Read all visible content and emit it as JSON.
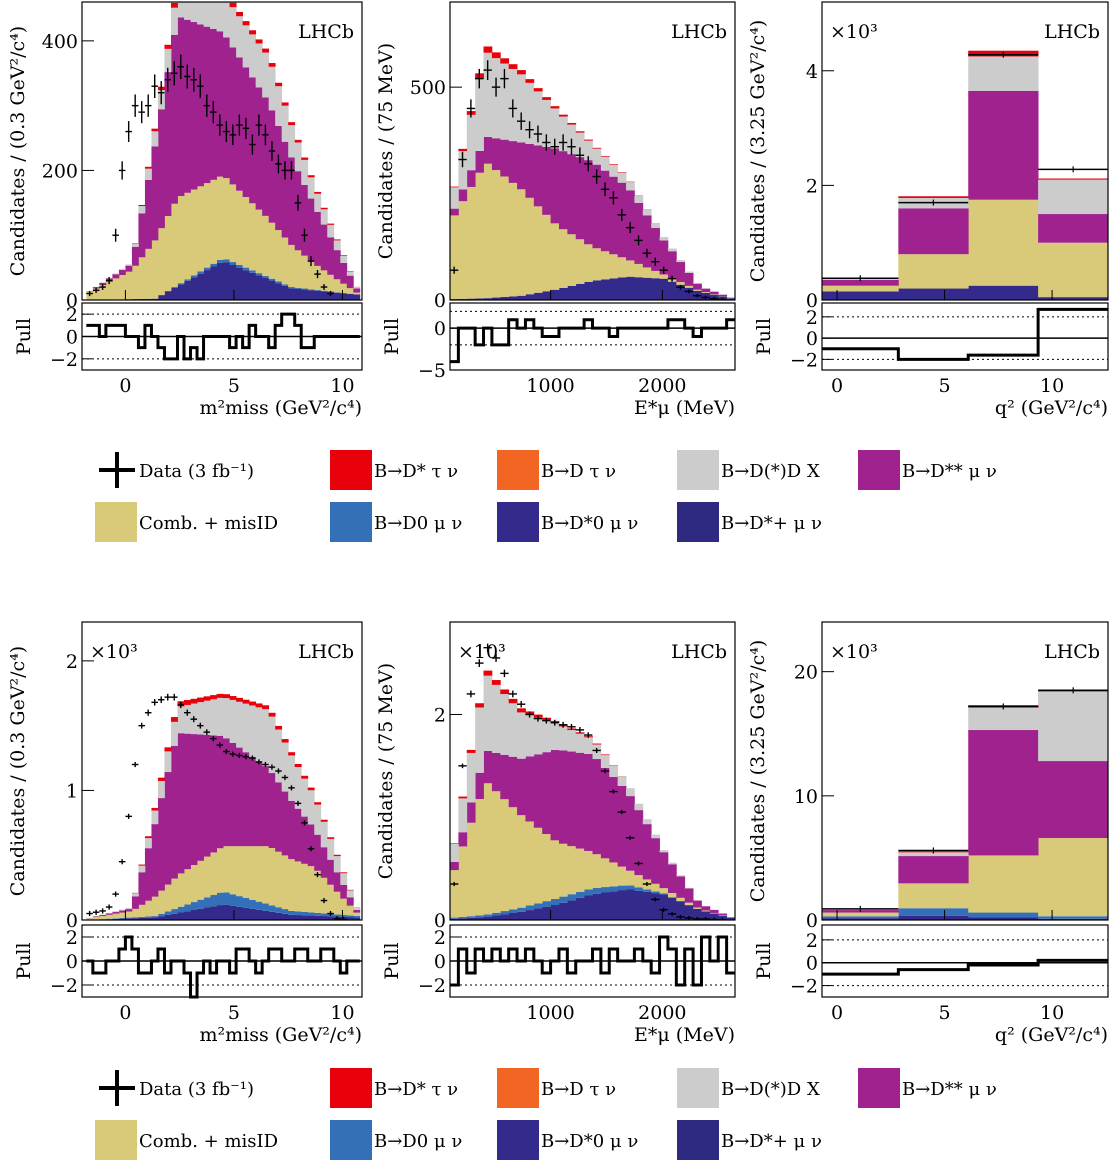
{
  "experiment_label": "LHCb",
  "axis_labels": {
    "mm2_y": "Candidates / (0.3 GeV²/c⁴)",
    "el_y": "Candidates / (75 MeV)",
    "q2_y": "Candidates / (3.25 GeV²/c⁴)",
    "mm2_x": "m²miss (GeV²/c⁴)",
    "el_x": "E*μ (MeV)",
    "q2_x": "q² (GeV²/c⁴)",
    "pull": "Pull",
    "multiplier": "×10³"
  },
  "legend": [
    {
      "key": "data",
      "label": "Data (3 fb⁻¹)"
    },
    {
      "key": "dsttau",
      "label": "B→D* τ ν",
      "color": "#e8000b"
    },
    {
      "key": "dtau",
      "label": "B→D τ ν",
      "color": "#f26522"
    },
    {
      "key": "ddx",
      "label": "B→D(*)D X",
      "color": "#cccccc"
    },
    {
      "key": "dss",
      "label": "B→D** μ ν",
      "color": "#a0228f"
    },
    {
      "key": "comb",
      "label": "Comb. + misID",
      "color": "#d9ca7a"
    },
    {
      "key": "d0",
      "label": "B→D0 μ ν",
      "color": "#3370b8"
    },
    {
      "key": "dst0",
      "label": "B→D*0 μ ν",
      "color": "#342a8c"
    },
    {
      "key": "dstp",
      "label": "B→D*+ μ ν",
      "color": "#2e2a80"
    }
  ],
  "chart_data": [
    {
      "id": "top-mm2",
      "type": "area",
      "variable": "mm2",
      "xlim": [
        -2,
        10.9
      ],
      "ylim": [
        0,
        460
      ],
      "yticks": [
        0,
        200,
        400
      ],
      "xticks": [
        0,
        5,
        10
      ],
      "multiplier": false,
      "bins": {
        "start": -1.8,
        "width": 0.3,
        "n": 42
      },
      "series_profile": {
        "dst0": [
          0,
          2,
          60,
          18,
          8
        ],
        "d0": [
          0,
          0,
          5,
          2,
          0
        ],
        "comb": [
          10,
          45,
          135,
          128,
          90,
          40,
          0
        ],
        "dss": [
          0,
          10,
          280,
          220,
          180,
          90,
          0
        ],
        "ddx": [
          0,
          2,
          45,
          60,
          70,
          30,
          0
        ],
        "tau": [
          0,
          0,
          8,
          7,
          6,
          3,
          0
        ]
      },
      "data": {
        "x": [
          -1.65,
          -1.35,
          -1.05,
          -0.75,
          -0.45,
          -0.15,
          0.15,
          0.45,
          0.75,
          1.05,
          1.35,
          1.65,
          1.95,
          2.25,
          2.55,
          2.85,
          3.15,
          3.45,
          3.75,
          4.05,
          4.35,
          4.65,
          4.95,
          5.25,
          5.55,
          5.85,
          6.15,
          6.45,
          6.75,
          7.05,
          7.35,
          7.65,
          7.95,
          8.25,
          8.55,
          8.85,
          9.15,
          9.45
        ],
        "y": [
          10,
          15,
          20,
          30,
          100,
          200,
          260,
          300,
          290,
          300,
          330,
          320,
          340,
          350,
          360,
          345,
          340,
          330,
          300,
          290,
          270,
          260,
          255,
          270,
          265,
          240,
          270,
          255,
          230,
          210,
          200,
          200,
          150,
          100,
          60,
          40,
          20,
          10
        ]
      },
      "pull": [
        1,
        1,
        0,
        1,
        1,
        1,
        0,
        0,
        -1,
        1,
        0,
        -1,
        -2,
        -2,
        0,
        -2,
        -1,
        -2,
        0,
        0,
        0,
        0,
        -1,
        0,
        -1,
        1,
        0,
        0,
        -1,
        1,
        2,
        2,
        1,
        -1,
        -1,
        0,
        0,
        0,
        0,
        0,
        0,
        0
      ],
      "pull_ylim": [
        -3,
        3
      ],
      "pull_ticks": [
        -2,
        0,
        2
      ]
    },
    {
      "id": "top-el",
      "type": "area",
      "variable": "el",
      "xlim": [
        100,
        2650
      ],
      "ylim": [
        0,
        700
      ],
      "yticks": [
        0,
        500
      ],
      "xticks": [
        1000,
        2000
      ],
      "multiplier": false,
      "bins": {
        "start": 100,
        "width": 75,
        "n": 34
      },
      "series_profile": {
        "dst0": [
          2,
          4,
          10,
          25,
          45,
          55,
          50,
          20,
          2
        ],
        "comb": [
          180,
          320,
          250,
          150,
          80,
          40,
          10,
          2,
          0
        ],
        "dss": [
          10,
          60,
          110,
          180,
          200,
          170,
          80,
          10,
          0
        ],
        "ddx": [
          30,
          200,
          160,
          90,
          40,
          20,
          8,
          1,
          0
        ],
        "tau": [
          0,
          15,
          10,
          5,
          2,
          1,
          0,
          0,
          0
        ]
      },
      "data": {
        "x": [
          137,
          212,
          287,
          362,
          437,
          512,
          587,
          662,
          737,
          812,
          887,
          962,
          1037,
          1112,
          1187,
          1262,
          1337,
          1412,
          1487,
          1562,
          1637,
          1712,
          1787,
          1862,
          1937,
          2012,
          2087,
          2162,
          2237,
          2312,
          2387,
          2462,
          2537
        ],
        "y": [
          70,
          330,
          450,
          520,
          540,
          500,
          520,
          450,
          420,
          400,
          390,
          370,
          360,
          370,
          360,
          340,
          320,
          290,
          260,
          240,
          200,
          170,
          140,
          110,
          90,
          70,
          50,
          30,
          20,
          10,
          6,
          3,
          1
        ]
      },
      "pull": [
        -4,
        0,
        0,
        -2,
        0,
        -2,
        -2,
        1,
        0,
        1,
        0,
        -1,
        -1,
        0,
        0,
        0,
        1,
        0,
        0,
        -1,
        0,
        0,
        0,
        0,
        0,
        0,
        1,
        1,
        0,
        -1,
        0,
        0,
        0,
        1
      ],
      "pull_ylim": [
        -5,
        3
      ],
      "pull_ticks": [
        -5,
        0
      ]
    },
    {
      "id": "top-q2",
      "type": "area",
      "variable": "q2",
      "xlim": [
        -0.7,
        12.6
      ],
      "ylim": [
        0,
        5.2
      ],
      "yticks": [
        0,
        2,
        4
      ],
      "xticks": [
        0,
        5,
        10
      ],
      "multiplier": true,
      "bins": {
        "edges": [
          -0.7,
          2.85,
          6.1,
          9.35,
          12.6
        ]
      },
      "stacks": {
        "dst0": [
          0.15,
          0.2,
          0.25,
          0.05
        ],
        "d0": [
          0,
          0,
          0,
          0
        ],
        "comb": [
          0.1,
          0.6,
          1.5,
          0.95
        ],
        "dss": [
          0.1,
          0.8,
          1.9,
          0.5
        ],
        "ddx": [
          0.02,
          0.18,
          0.6,
          0.6
        ],
        "tau": [
          0.01,
          0.03,
          0.1,
          0.02
        ]
      },
      "data": {
        "x": [
          1.08,
          4.48,
          7.73,
          10.98
        ],
        "y": [
          0.38,
          1.7,
          4.28,
          2.28
        ]
      },
      "pull": [
        -1,
        -2,
        -1.6,
        2.7
      ],
      "pull_ylim": [
        -3,
        3.3
      ],
      "pull_ticks": [
        -2,
        0,
        2
      ]
    },
    {
      "id": "bot-mm2",
      "type": "area",
      "variable": "mm2",
      "xlim": [
        -2,
        10.9
      ],
      "ylim": [
        0,
        2.3
      ],
      "yticks": [
        0,
        1,
        2
      ],
      "xticks": [
        0,
        5,
        10
      ],
      "multiplier": true,
      "bins": {
        "start": -1.8,
        "width": 0.3,
        "n": 42
      },
      "series_profile": {
        "dst0": [
          0,
          0.02,
          0.12,
          0.04,
          0.02
        ],
        "d0": [
          0,
          0.01,
          0.1,
          0.03,
          0.01
        ],
        "comb": [
          0.01,
          0.05,
          0.25,
          0.35,
          0.45,
          0.35,
          0
        ],
        "dss": [
          0,
          0.02,
          1.1,
          0.85,
          0.6,
          0.3,
          0
        ],
        "ddx": [
          0,
          0.01,
          0.2,
          0.3,
          0.45,
          0.25,
          0
        ],
        "tau": [
          0,
          0,
          0.04,
          0.03,
          0.03,
          0.02,
          0
        ]
      },
      "data": {
        "x": [
          -1.65,
          -1.35,
          -1.05,
          -0.75,
          -0.45,
          -0.15,
          0.15,
          0.45,
          0.75,
          1.05,
          1.35,
          1.65,
          1.95,
          2.25,
          2.55,
          2.85,
          3.15,
          3.45,
          3.75,
          4.05,
          4.35,
          4.65,
          4.95,
          5.25,
          5.55,
          5.85,
          6.15,
          6.45,
          6.75,
          7.05,
          7.35,
          7.65,
          7.95,
          8.25,
          8.55,
          8.85,
          9.15,
          9.45,
          9.75,
          10.05
        ],
        "y": [
          0.05,
          0.06,
          0.07,
          0.1,
          0.2,
          0.45,
          0.8,
          1.2,
          1.5,
          1.6,
          1.68,
          1.7,
          1.72,
          1.72,
          1.66,
          1.6,
          1.55,
          1.5,
          1.45,
          1.4,
          1.35,
          1.3,
          1.28,
          1.27,
          1.26,
          1.25,
          1.22,
          1.2,
          1.18,
          1.15,
          1.1,
          1.02,
          0.9,
          0.75,
          0.55,
          0.35,
          0.15,
          0.05,
          0.01,
          0.005
        ]
      },
      "pull": [
        0,
        -1,
        -1,
        0,
        0,
        1,
        2,
        1,
        -1,
        -1,
        0,
        1,
        -1,
        0,
        0,
        -1,
        -3,
        -1,
        0,
        -1,
        0,
        0,
        -1,
        1,
        1,
        0,
        -1,
        0,
        1,
        1,
        0,
        0,
        1,
        1,
        0,
        0,
        1,
        1,
        0,
        -1,
        0,
        0
      ],
      "pull_ylim": [
        -3,
        3
      ],
      "pull_ticks": [
        -2,
        0,
        2
      ]
    },
    {
      "id": "bot-el",
      "type": "area",
      "variable": "el",
      "xlim": [
        100,
        2650
      ],
      "ylim": [
        0,
        2.9
      ],
      "yticks": [
        0,
        2
      ],
      "xticks": [
        1000,
        2000
      ],
      "multiplier": true,
      "bins": {
        "start": 100,
        "width": 75,
        "n": 34
      },
      "series_profile": {
        "dst0": [
          0.01,
          0.03,
          0.08,
          0.15,
          0.25,
          0.3,
          0.25,
          0.1,
          0.01
        ],
        "d0": [
          0.01,
          0.02,
          0.04,
          0.06,
          0.06,
          0.04,
          0.01,
          0,
          0
        ],
        "comb": [
          0.35,
          1.3,
          0.9,
          0.55,
          0.35,
          0.15,
          0.05,
          0.01,
          0
        ],
        "dss": [
          0.05,
          0.3,
          0.55,
          0.9,
          0.95,
          0.75,
          0.35,
          0.05,
          0
        ],
        "ddx": [
          0.1,
          0.75,
          0.45,
          0.25,
          0.15,
          0.08,
          0.02,
          0,
          0
        ],
        "tau": [
          0,
          0.05,
          0.04,
          0.02,
          0.01,
          0,
          0,
          0,
          0
        ]
      },
      "data": {
        "x": [
          137,
          212,
          287,
          362,
          437,
          512,
          587,
          662,
          737,
          812,
          887,
          962,
          1037,
          1112,
          1187,
          1262,
          1337,
          1412,
          1487,
          1562,
          1637,
          1712,
          1787,
          1862,
          1937,
          2012,
          2087,
          2162,
          2237,
          2312,
          2387,
          2462,
          2537
        ],
        "y": [
          0.35,
          1.5,
          2.2,
          2.5,
          2.65,
          2.55,
          2.4,
          2.2,
          2.1,
          2.0,
          1.96,
          1.94,
          1.92,
          1.9,
          1.88,
          1.85,
          1.8,
          1.65,
          1.45,
          1.25,
          1.05,
          0.8,
          0.55,
          0.35,
          0.2,
          0.1,
          0.06,
          0.03,
          0.02,
          0.01,
          0.01,
          0.005,
          0.002
        ]
      },
      "pull": [
        -2,
        1,
        -1,
        1,
        0,
        1,
        0,
        1,
        0,
        1,
        0,
        -1,
        0,
        1,
        -1,
        0,
        0,
        1,
        -1,
        1,
        0,
        0,
        1,
        0,
        -1,
        2,
        1,
        -2,
        1,
        -2,
        2,
        0,
        2,
        -1
      ],
      "pull_ylim": [
        -3,
        3
      ],
      "pull_ticks": [
        -2,
        0,
        2
      ]
    },
    {
      "id": "bot-q2",
      "type": "area",
      "variable": "q2",
      "xlim": [
        -0.7,
        12.6
      ],
      "ylim": [
        0,
        24
      ],
      "yticks": [
        0,
        10,
        20
      ],
      "xticks": [
        0,
        5,
        10
      ],
      "multiplier": true,
      "bins": {
        "edges": [
          -0.7,
          2.85,
          6.1,
          9.35,
          12.6
        ]
      },
      "stacks": {
        "dst0": [
          0.15,
          0.35,
          0.2,
          0.1
        ],
        "d0": [
          0.15,
          0.6,
          0.4,
          0.2
        ],
        "comb": [
          0.3,
          2.0,
          4.6,
          6.3
        ],
        "dss": [
          0.2,
          2.2,
          10.1,
          6.2
        ],
        "ddx": [
          0.05,
          0.3,
          1.8,
          5.6
        ],
        "tau": [
          0.01,
          0.08,
          0.2,
          0.1
        ]
      },
      "data": {
        "x": [
          1.08,
          4.48,
          7.73,
          10.98
        ],
        "y": [
          0.9,
          5.6,
          17.2,
          18.5
        ]
      },
      "pull": [
        -1,
        -0.6,
        -0.2,
        0.2
      ],
      "pull_ylim": [
        -3,
        3.3
      ],
      "pull_ticks": [
        -2,
        0,
        2
      ]
    }
  ]
}
